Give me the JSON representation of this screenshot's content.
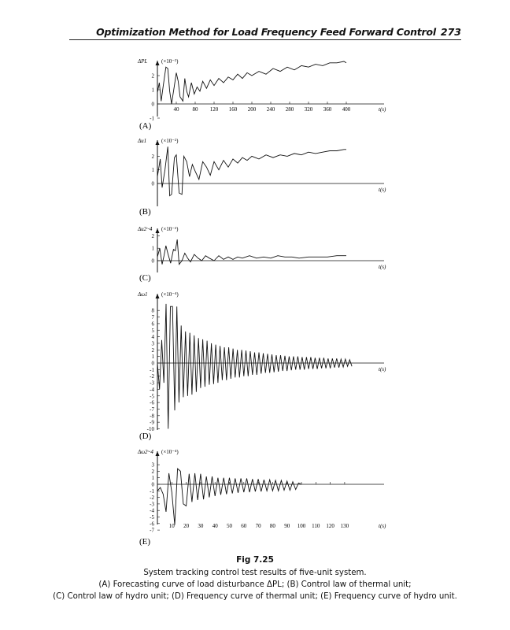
{
  "header": {
    "running_title": "Optimization Method for Load Frequency Feed Forward Control",
    "page_number": "273"
  },
  "figure": {
    "number": "Fig 7.25",
    "caption_title": "System tracking control test results of five-unit system.",
    "caption_line1": "(A) Forecasting curve of load disturbance ΔPL; (B) Control law of thermal unit;",
    "caption_line2": "(C) Control law of hydro unit; (D) Frequency curve of thermal unit; (E) Frequency curve of hydro unit."
  },
  "chart_data": [
    {
      "panel": "(A)",
      "type": "line",
      "ylabel": "ΔPL",
      "scale": "(×10⁻²)",
      "xlabel": "t(s)",
      "xlim": [
        0,
        420
      ],
      "ylim": [
        -1,
        3
      ],
      "xticks": [
        40,
        80,
        120,
        160,
        200,
        240,
        280,
        320,
        360,
        400
      ],
      "yticks": [
        -1,
        0,
        1,
        2
      ],
      "x": [
        0,
        4,
        8,
        12,
        18,
        22,
        26,
        30,
        36,
        40,
        44,
        48,
        54,
        58,
        62,
        66,
        72,
        78,
        84,
        90,
        96,
        104,
        112,
        120,
        130,
        140,
        150,
        160,
        170,
        180,
        190,
        200,
        215,
        230,
        245,
        260,
        275,
        290,
        305,
        320,
        335,
        350,
        365,
        380,
        395,
        400
      ],
      "y": [
        0.8,
        1.5,
        0.2,
        1.2,
        2.6,
        2.5,
        0.9,
        0.0,
        1.3,
        2.2,
        1.6,
        0.5,
        0.2,
        1.8,
        0.9,
        0.5,
        1.5,
        0.7,
        1.2,
        0.9,
        1.6,
        1.1,
        1.7,
        1.3,
        1.8,
        1.5,
        1.9,
        1.7,
        2.1,
        1.8,
        2.2,
        2.0,
        2.3,
        2.1,
        2.5,
        2.3,
        2.6,
        2.4,
        2.7,
        2.6,
        2.8,
        2.7,
        2.9,
        2.9,
        3.0,
        2.9
      ]
    },
    {
      "panel": "(B)",
      "type": "line",
      "ylabel": "Δu1",
      "scale": "(×10⁻²)",
      "xlabel": "t(s)",
      "xlim": [
        0,
        420
      ],
      "ylim": [
        -1,
        3
      ],
      "yticks": [
        0,
        1,
        2
      ],
      "x": [
        0,
        6,
        10,
        16,
        22,
        26,
        30,
        36,
        40,
        46,
        52,
        56,
        62,
        68,
        74,
        80,
        88,
        96,
        104,
        112,
        120,
        130,
        140,
        150,
        160,
        170,
        180,
        190,
        200,
        215,
        230,
        245,
        260,
        275,
        290,
        305,
        320,
        335,
        350,
        365,
        380,
        395,
        400
      ],
      "y": [
        0.5,
        1.8,
        -0.3,
        1.0,
        2.7,
        -0.9,
        -0.8,
        1.9,
        2.1,
        -0.7,
        -0.8,
        2.0,
        1.6,
        0.5,
        1.4,
        0.9,
        0.3,
        1.6,
        1.2,
        0.6,
        1.6,
        1.0,
        1.7,
        1.2,
        1.8,
        1.5,
        1.9,
        1.7,
        2.0,
        1.8,
        2.1,
        1.9,
        2.1,
        2.0,
        2.2,
        2.1,
        2.3,
        2.2,
        2.3,
        2.4,
        2.4,
        2.5,
        2.5
      ]
    },
    {
      "panel": "(C)",
      "type": "line",
      "ylabel": "Δu2~4",
      "scale": "(×10⁻²)",
      "xlabel": "t(s)",
      "xlim": [
        0,
        420
      ],
      "ylim": [
        -1,
        3
      ],
      "yticks": [
        0,
        1,
        2
      ],
      "x": [
        0,
        5,
        10,
        14,
        18,
        22,
        28,
        34,
        38,
        42,
        46,
        52,
        58,
        64,
        70,
        78,
        86,
        94,
        102,
        110,
        120,
        130,
        140,
        150,
        160,
        170,
        180,
        195,
        210,
        225,
        240,
        255,
        270,
        285,
        300,
        320,
        340,
        360,
        380,
        400
      ],
      "y": [
        0.3,
        1.0,
        -0.3,
        0.4,
        1.2,
        0.6,
        -0.2,
        0.9,
        0.8,
        1.7,
        -0.3,
        0.0,
        0.6,
        0.2,
        -0.1,
        0.5,
        0.2,
        0.0,
        0.4,
        0.2,
        0.0,
        0.4,
        0.1,
        0.3,
        0.1,
        0.3,
        0.2,
        0.4,
        0.2,
        0.3,
        0.2,
        0.4,
        0.3,
        0.3,
        0.2,
        0.3,
        0.3,
        0.3,
        0.4,
        0.4
      ]
    },
    {
      "panel": "(D)",
      "type": "line",
      "ylabel": "Δω1",
      "scale": "(×10⁻⁴)",
      "xlabel": "t(s)",
      "xlim": [
        0,
        140
      ],
      "ylim": [
        -10,
        9
      ],
      "yticks": [
        8,
        7,
        6,
        5,
        4,
        3,
        2,
        1,
        0,
        -1,
        -2,
        -3,
        -4,
        -5,
        -6,
        -7,
        -8,
        -9,
        -10
      ],
      "x": [
        0,
        1.5,
        3,
        4.5,
        6,
        7.5,
        9,
        10.5,
        12,
        13.5,
        15,
        16.5,
        18,
        19.5,
        21,
        22.5,
        24,
        25.5,
        27,
        28.5,
        30,
        31.5,
        33,
        34.5,
        36,
        37.5,
        39,
        40.5,
        42,
        43.5,
        45,
        46.5,
        48,
        49.5,
        51,
        52.5,
        54,
        55.5,
        57,
        58.5,
        60,
        61.5,
        63,
        64.5,
        66,
        67.5,
        69,
        70.5,
        72,
        73.5,
        75,
        76.5,
        78,
        79.5,
        81,
        82.5,
        84,
        85.5,
        87,
        88.5,
        90,
        91.5,
        93,
        94.5,
        96,
        97.5,
        99,
        100.5,
        102,
        103.5,
        105,
        106.5,
        108,
        109.5,
        111,
        112.5,
        114,
        115.5,
        117,
        118.5,
        120,
        121.5,
        123,
        124.5,
        126,
        127.5,
        129,
        130.5,
        132,
        133.5,
        135
      ],
      "y": [
        0,
        -4,
        3.5,
        -3,
        9,
        -10,
        8.6,
        8.6,
        -7.2,
        8.6,
        -6,
        5.7,
        -5.2,
        4.8,
        -5,
        4.6,
        -4.8,
        4.2,
        -4.4,
        3.8,
        -3.8,
        3.6,
        -3.6,
        3.4,
        -3.3,
        3.0,
        -3.2,
        2.8,
        -3.0,
        2.6,
        -2.6,
        2.4,
        -2.6,
        2.4,
        -2.4,
        2.2,
        -2.2,
        2.0,
        -2.2,
        2.0,
        -2.0,
        1.9,
        -2.0,
        1.8,
        -1.8,
        1.6,
        -1.8,
        1.6,
        -1.6,
        1.5,
        -1.5,
        1.4,
        -1.5,
        1.3,
        -1.4,
        1.2,
        -1.3,
        1.2,
        -1.2,
        1.1,
        -1.2,
        1.0,
        -1.1,
        1.0,
        -1.0,
        1.0,
        -1.0,
        0.9,
        -1.0,
        0.9,
        -0.9,
        0.9,
        -0.9,
        0.8,
        -0.9,
        0.8,
        -0.8,
        0.8,
        -0.8,
        0.7,
        -0.8,
        0.7,
        -0.7,
        0.7,
        -0.7,
        0.6,
        -0.6,
        0.6,
        -0.5,
        0.5,
        -0.5
      ]
    },
    {
      "panel": "(E)",
      "type": "line",
      "ylabel": "Δω2~4",
      "scale": "(×10⁻⁴)",
      "xlabel": "t(s)",
      "xlim": [
        0,
        140
      ],
      "ylim": [
        -7,
        4
      ],
      "xticks": [
        10,
        20,
        30,
        40,
        50,
        60,
        70,
        80,
        90,
        100,
        110,
        120,
        130
      ],
      "yticks": [
        3,
        2,
        1,
        0,
        -1,
        -2,
        -3,
        -4,
        -5,
        -6,
        -7
      ],
      "x": [
        0,
        2,
        4,
        6,
        8,
        10,
        12,
        14,
        16,
        18,
        20,
        22,
        24,
        26,
        28,
        30,
        32,
        34,
        36,
        38,
        40,
        42,
        44,
        46,
        48,
        50,
        52,
        54,
        56,
        58,
        60,
        62,
        64,
        66,
        68,
        70,
        72,
        74,
        76,
        78,
        80,
        82,
        84,
        86,
        88,
        90,
        92,
        94,
        96,
        98,
        100
      ],
      "y": [
        -1,
        -0.5,
        -1.5,
        -4.2,
        1.7,
        -1.2,
        -6.2,
        2.4,
        2.0,
        -3.0,
        -3.3,
        1.6,
        -2.7,
        1.7,
        -2.4,
        1.6,
        -2.3,
        1.2,
        -2.0,
        1.2,
        -1.8,
        1.0,
        -1.6,
        1.0,
        -1.5,
        1.0,
        -1.4,
        0.9,
        -1.3,
        0.9,
        -1.2,
        0.9,
        -1.2,
        0.8,
        -1.1,
        0.8,
        -1.1,
        0.7,
        -1.0,
        0.7,
        -1.0,
        0.6,
        -1.0,
        0.6,
        -0.9,
        0.5,
        -0.9,
        0.4,
        -0.8,
        0.2,
        0.0
      ]
    }
  ]
}
